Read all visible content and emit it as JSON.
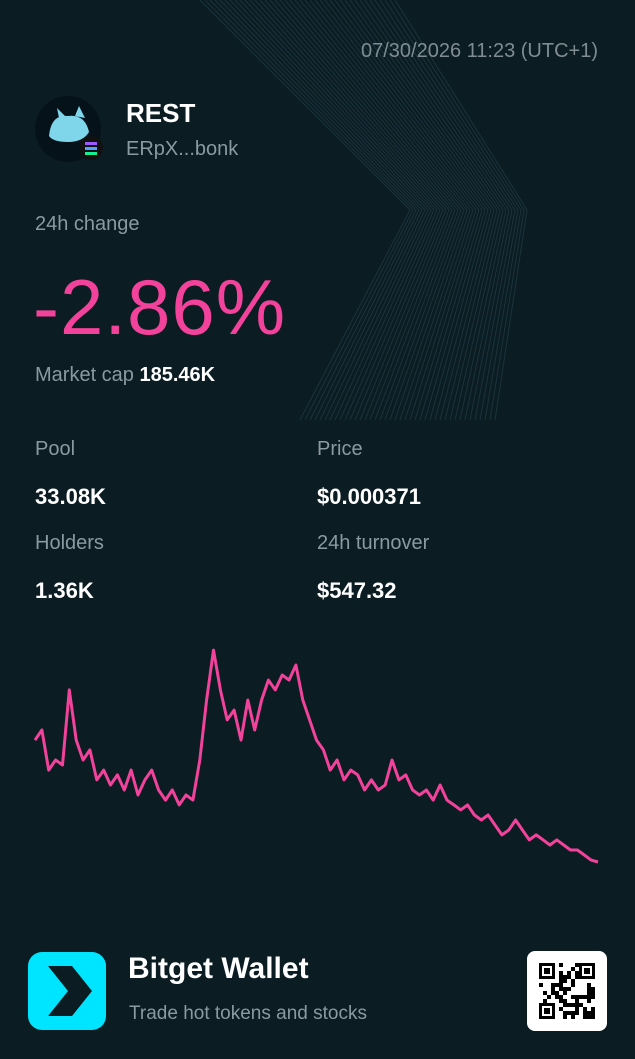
{
  "header": {
    "timestamp": "07/30/2026 11:23 (UTC+1)",
    "token_name": "REST",
    "address": "ERpX...bonk"
  },
  "change": {
    "label": "24h change",
    "value": "-2.86%"
  },
  "market_cap": {
    "label": "Market cap",
    "value": "185.46K"
  },
  "stats": [
    {
      "label": "Pool",
      "value": "33.08K"
    },
    {
      "label": "Price",
      "value": "$0.000371"
    },
    {
      "label": "Holders",
      "value": "1.36K"
    },
    {
      "label": "24h turnover",
      "value": "$547.32"
    }
  ],
  "chart_data": {
    "type": "line",
    "color": "#f2429b",
    "ylim": [
      0,
      100
    ],
    "values": [
      58.3,
      62.5,
      45.8,
      50,
      47.9,
      79.2,
      58.3,
      50,
      54.2,
      41.7,
      45.8,
      39.6,
      43.8,
      37.5,
      45.8,
      35.4,
      41.7,
      45.8,
      37.5,
      33.3,
      37.5,
      31.3,
      35.4,
      33.3,
      50,
      75,
      95.8,
      79.2,
      66.7,
      70.8,
      58.3,
      75,
      62.5,
      75,
      83.3,
      79.2,
      85.4,
      83.3,
      89.6,
      75,
      66.7,
      58.3,
      54.2,
      45.8,
      50,
      41.7,
      45.8,
      43.8,
      37.5,
      41.7,
      37.5,
      39.6,
      50,
      41.7,
      43.8,
      37.5,
      35.4,
      37.5,
      33.3,
      39.6,
      33.3,
      31.3,
      29.2,
      31.3,
      27.1,
      25,
      27.1,
      22.9,
      18.8,
      20.8,
      25,
      20.8,
      16.7,
      18.8,
      16.7,
      14.6,
      16.7,
      14.6,
      12.5,
      12.5,
      10.4,
      8.3,
      7.5
    ]
  },
  "footer": {
    "brand": "Bitget Wallet",
    "tagline": "Trade hot tokens and stocks"
  }
}
